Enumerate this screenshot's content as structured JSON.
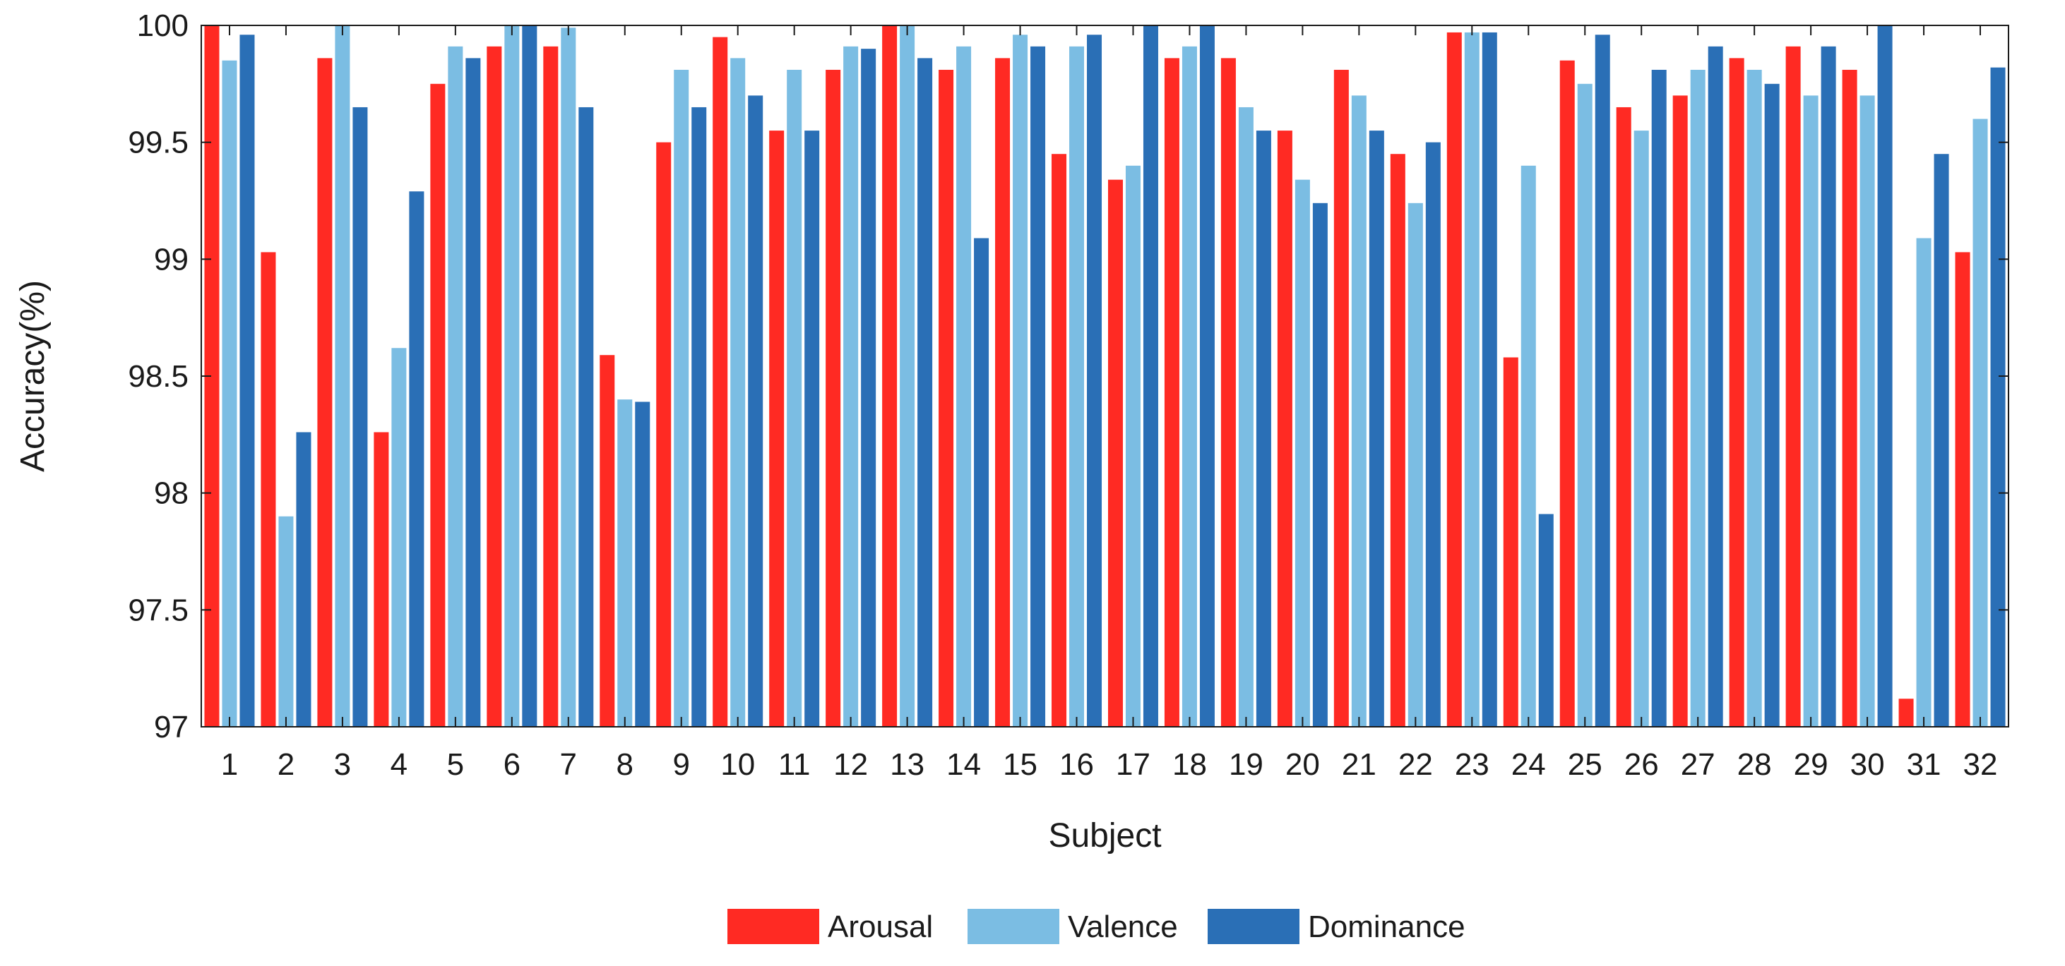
{
  "chart_data": {
    "type": "bar",
    "title": "",
    "xlabel": "Subject",
    "ylabel": "Accuracy(%)",
    "ylim": [
      97,
      100
    ],
    "yticks": [
      97,
      97.5,
      98,
      98.5,
      99,
      99.5,
      100
    ],
    "ytick_labels": [
      "97",
      "97.5",
      "98",
      "98.5",
      "99",
      "99.5",
      "100"
    ],
    "grid": false,
    "legend_position": "bottom-center",
    "categories": [
      "1",
      "2",
      "3",
      "4",
      "5",
      "6",
      "7",
      "8",
      "9",
      "10",
      "11",
      "12",
      "13",
      "14",
      "15",
      "16",
      "17",
      "18",
      "19",
      "20",
      "21",
      "22",
      "23",
      "24",
      "25",
      "26",
      "27",
      "28",
      "29",
      "30",
      "31",
      "32"
    ],
    "series": [
      {
        "name": "Arousal",
        "color": "#ff2a23",
        "values": [
          100,
          99.03,
          99.86,
          98.26,
          99.75,
          99.91,
          99.91,
          98.59,
          99.5,
          99.95,
          99.55,
          99.81,
          100,
          99.81,
          99.86,
          99.45,
          99.34,
          99.86,
          99.86,
          99.55,
          99.81,
          99.45,
          99.97,
          98.58,
          99.85,
          99.65,
          99.7,
          99.86,
          99.91,
          99.81,
          97.12,
          99.03
        ]
      },
      {
        "name": "Valence",
        "color": "#7bbde3",
        "values": [
          99.85,
          97.9,
          100,
          98.62,
          99.91,
          100,
          99.99,
          98.4,
          99.81,
          99.86,
          99.81,
          99.91,
          100,
          99.91,
          99.96,
          99.91,
          99.4,
          99.91,
          99.65,
          99.34,
          99.7,
          99.24,
          99.97,
          99.4,
          99.75,
          99.55,
          99.81,
          99.81,
          99.7,
          99.7,
          99.09,
          99.6
        ]
      },
      {
        "name": "Dominance",
        "color": "#2a6fb6",
        "values": [
          99.96,
          98.26,
          99.65,
          99.29,
          99.86,
          100,
          99.65,
          98.39,
          99.65,
          99.7,
          99.55,
          99.9,
          99.86,
          99.09,
          99.91,
          99.96,
          100,
          100,
          99.55,
          99.24,
          99.55,
          99.5,
          99.97,
          97.91,
          99.96,
          99.81,
          99.91,
          99.75,
          99.91,
          100,
          99.45,
          99.82
        ]
      }
    ]
  }
}
